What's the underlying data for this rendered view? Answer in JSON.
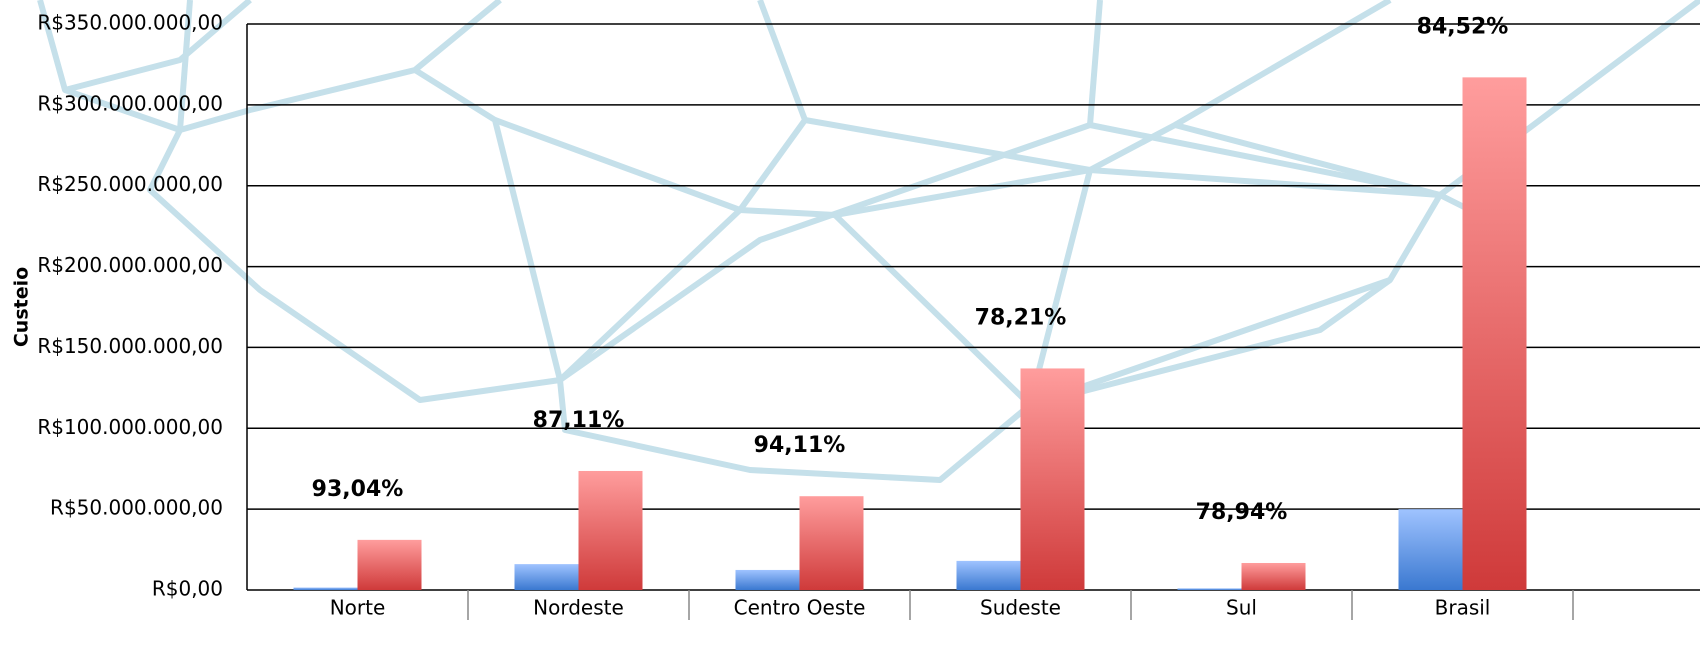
{
  "chart_data": {
    "type": "bar",
    "ylabel": "Custeio",
    "categories": [
      "Norte",
      "Nordeste",
      "Centro Oeste",
      "Sudeste",
      "Sul",
      "Brasil"
    ],
    "series": [
      {
        "color": "#5b8fe0",
        "values": [
          1500000,
          16000000,
          12400000,
          18000000,
          1000000,
          50000000
        ]
      },
      {
        "color": "#e05555",
        "values": [
          31000000,
          73600000,
          58000000,
          137000000,
          16700000,
          317000000
        ]
      }
    ],
    "annotations": [
      "93,04%",
      "87,11%",
      "94,11%",
      "78,21%",
      "78,94%",
      "84,52%"
    ],
    "ylim": [
      0,
      350000000
    ],
    "yticks": [
      {
        "value": 0,
        "label": "R$0,00"
      },
      {
        "value": 50000000,
        "label": "R$50.000.000,00"
      },
      {
        "value": 100000000,
        "label": "R$100.000.000,00"
      },
      {
        "value": 150000000,
        "label": "R$150.000.000,00"
      },
      {
        "value": 200000000,
        "label": "R$200.000.000,00"
      },
      {
        "value": 250000000,
        "label": "R$250.000.000,00"
      },
      {
        "value": 300000000,
        "label": "R$300.000.000,00"
      },
      {
        "value": 350000000,
        "label": "R$350.000.000,00"
      }
    ],
    "grid": true
  }
}
